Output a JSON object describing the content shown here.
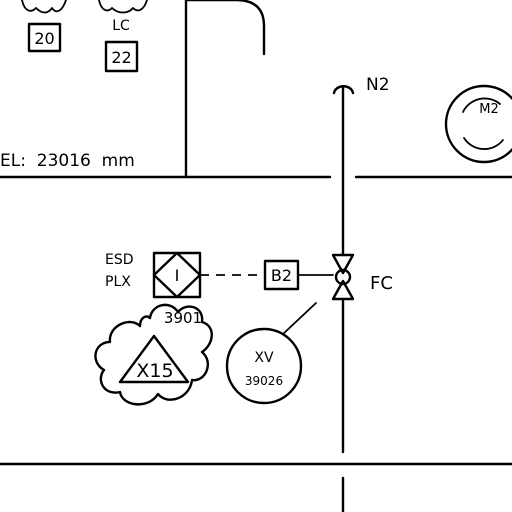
{
  "labels": {
    "tag_20": "20",
    "lc": "LC",
    "tag_22": "22",
    "elevation": "EL:  23016  mm",
    "n2": "N2",
    "m2": "M2",
    "esd": "ESD",
    "plx": "PLX",
    "interlock": "I",
    "b2": "B2",
    "fc": "FC",
    "tag_3901": "3901",
    "x15": "X15",
    "xv": "XV",
    "xv_number": "39026"
  }
}
